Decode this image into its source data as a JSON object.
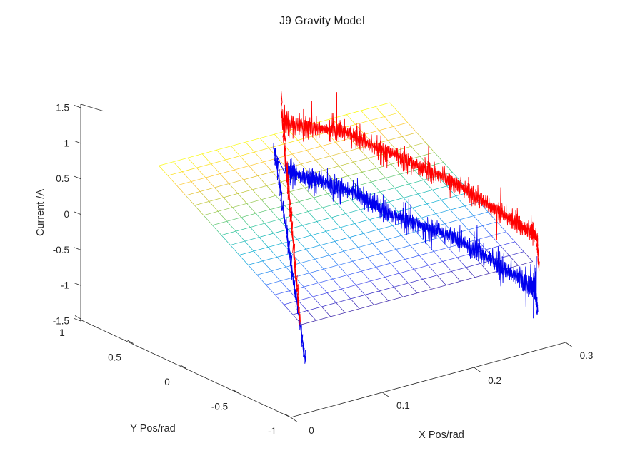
{
  "chart_data": {
    "type": "line",
    "subtype": "3d-mesh-with-line-series",
    "title": "J9 Gravity Model",
    "axes": {
      "x": {
        "label": "X Pos/rad",
        "range": [
          0,
          0.3
        ],
        "tick_values": [
          0,
          0.1,
          0.2,
          0.3
        ],
        "tick_labels": [
          "0",
          "0.1",
          "0.2",
          "0.3"
        ]
      },
      "y": {
        "label": "Y Pos/rad",
        "range": [
          -1,
          1
        ],
        "tick_values": [
          1,
          0.5,
          0,
          -0.5,
          -1
        ],
        "tick_labels": [
          "1",
          "0.5",
          "0",
          "-0.5",
          "-1"
        ]
      },
      "z": {
        "label": "Current /A",
        "range": [
          -1.5,
          1.5
        ],
        "tick_values": [
          1.5,
          1,
          0.5,
          0,
          -0.5,
          -1,
          -1.5
        ],
        "tick_labels": [
          "1.5",
          "1",
          "0.5",
          "0",
          "-0.5",
          "-1",
          "-1.5"
        ]
      }
    },
    "view": {
      "azimuth": -37.5,
      "elevation": 30,
      "projection": "orthographic",
      "grid": "off",
      "box": "off"
    },
    "mesh": {
      "name": "gravity-model-plane",
      "x_range": [
        0.02,
        0.272
      ],
      "y_range": [
        -0.93,
        0.43
      ],
      "grid_cells_x": 16,
      "grid_cells_y": 16,
      "plane": {
        "z0": 0.57,
        "dzdx": 0.0,
        "dzdy": 0.95
      },
      "clim": [
        -0.31,
        0.98
      ],
      "colormap": [
        "#3D26A8",
        "#4852F4",
        "#2E87F7",
        "#12B1D6",
        "#37C897",
        "#ABC739",
        "#FEC338",
        "#F9FB15"
      ]
    },
    "series": [
      {
        "name": "measured-current-reverse-sweep",
        "color": "#0000EE",
        "y_pos": -0.93,
        "seed": 23,
        "line_width": 0.9,
        "path": [
          {
            "type": "band",
            "from": [
              0.2775,
              -1.06
            ],
            "to": [
              0.2735,
              -0.6
            ],
            "points": 42,
            "x_jitter": 0.0009,
            "z_jitter": 0.07
          },
          {
            "type": "sweep",
            "points": 640,
            "noise": 0.115,
            "keypoints": [
              [
                0.276,
                -0.62
              ],
              [
                0.272,
                -0.66
              ],
              [
                0.255,
                -0.44
              ],
              [
                0.235,
                -0.22
              ],
              [
                0.215,
                0.0
              ],
              [
                0.195,
                0.2
              ],
              [
                0.175,
                0.4
              ],
              [
                0.155,
                0.6
              ],
              [
                0.135,
                0.78
              ],
              [
                0.115,
                0.95
              ],
              [
                0.095,
                1.13
              ],
              [
                0.075,
                1.33
              ],
              [
                0.055,
                1.5
              ],
              [
                0.035,
                1.68
              ],
              [
                0.015,
                1.85
              ],
              [
                0.002,
                1.97
              ]
            ]
          },
          {
            "type": "band",
            "from": [
              -0.01,
              2.3
            ],
            "to": [
              0.024,
              -0.85
            ],
            "points": 150,
            "x_jitter": 0.0012,
            "z_jitter": 0.1
          }
        ]
      },
      {
        "name": "measured-current-forward-sweep",
        "color": "#FF0000",
        "y_pos": -0.93,
        "seed": 11,
        "line_width": 0.9,
        "path": [
          {
            "type": "band",
            "from": [
              0.018,
              -0.25
            ],
            "to": [
              -0.002,
              2.8
            ],
            "points": 150,
            "x_jitter": 0.0012,
            "z_jitter": 0.1,
            "top_spikes": 0.12
          },
          {
            "type": "sweep",
            "points": 640,
            "noise": 0.105,
            "keypoints": [
              [
                0.0,
                2.62
              ],
              [
                0.023,
                2.47
              ],
              [
                0.046,
                2.31
              ],
              [
                0.066,
                2.22
              ],
              [
                0.085,
                2.03
              ],
              [
                0.105,
                1.9
              ],
              [
                0.124,
                1.73
              ],
              [
                0.144,
                1.52
              ],
              [
                0.163,
                1.31
              ],
              [
                0.183,
                1.1
              ],
              [
                0.202,
                0.9
              ],
              [
                0.222,
                0.68
              ],
              [
                0.241,
                0.49
              ],
              [
                0.256,
                0.28
              ],
              [
                0.27,
                0.1
              ],
              [
                0.276,
                0.03
              ]
            ]
          },
          {
            "type": "band",
            "from": [
              0.2765,
              0.03
            ],
            "to": [
              0.279,
              -0.42
            ],
            "points": 45,
            "x_jitter": 0.0008,
            "z_jitter": 0.06
          }
        ]
      }
    ],
    "style": {
      "background": "#FFFFFF",
      "axis_color": "#262626",
      "text_color": "#262626",
      "title_color": "#1a1a1a",
      "mesh_line_width": 0.75
    }
  }
}
